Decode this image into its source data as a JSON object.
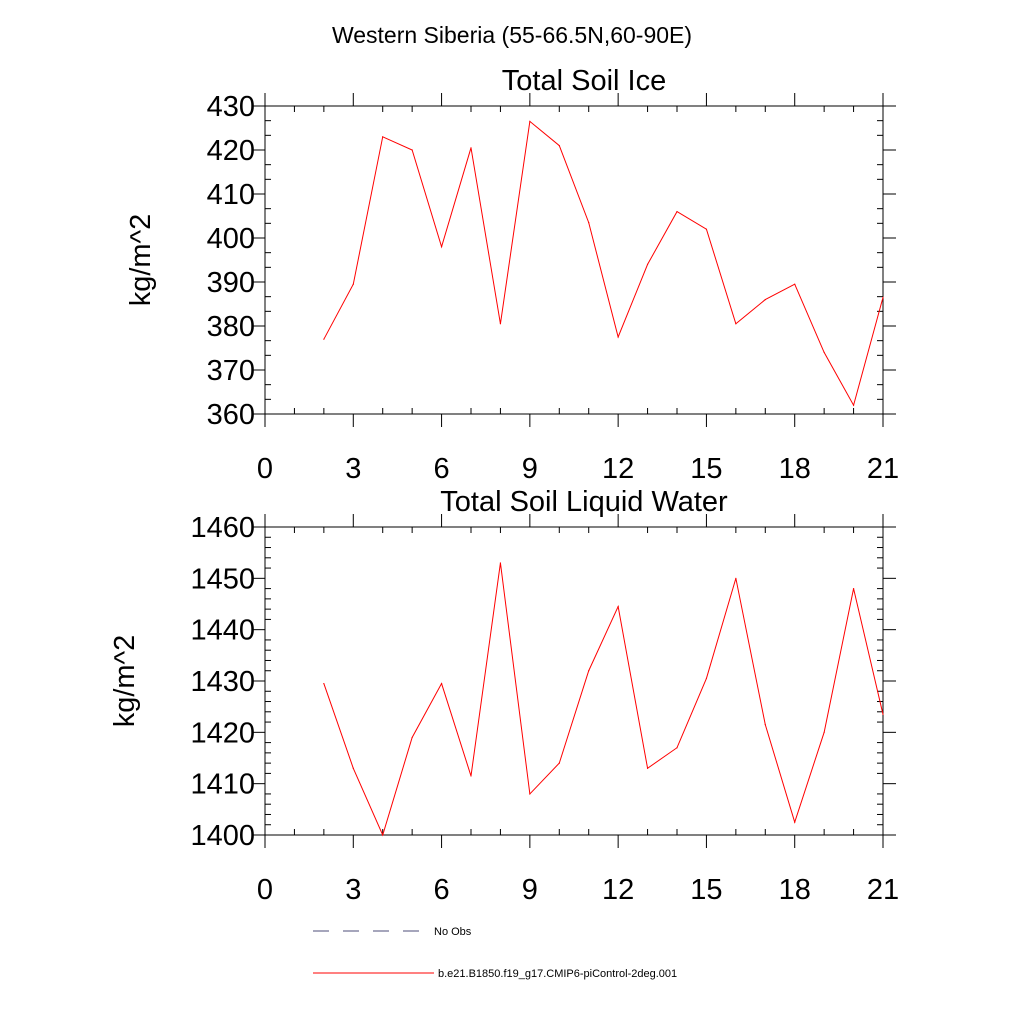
{
  "suptitle": "Western Siberia (55-66.5N,60-90E)",
  "colors": {
    "series": "#ff0000",
    "axis": "#000000",
    "noobs": "#4d4d7a"
  },
  "legend": {
    "items": [
      {
        "label": "No Obs",
        "style": "dashed"
      },
      {
        "label": "b.e21.B1850.f19_g17.CMIP6-piControl-2deg.001",
        "style": "solid"
      }
    ]
  },
  "chart_data": [
    {
      "type": "line",
      "title": "Total Soil Ice",
      "xlabel": "",
      "ylabel": "kg/m^2",
      "xlim": [
        0,
        21
      ],
      "ylim": [
        360,
        430
      ],
      "xticks": [
        0,
        3,
        6,
        9,
        12,
        15,
        18,
        21
      ],
      "yticks": [
        360,
        370,
        380,
        390,
        400,
        410,
        420,
        430
      ],
      "series": [
        {
          "name": "b.e21.B1850.f19_g17.CMIP6-piControl-2deg.001",
          "x": [
            2,
            3,
            4,
            5,
            6,
            7,
            8,
            9,
            10,
            11,
            12,
            13,
            14,
            15,
            16,
            17,
            18,
            19,
            20,
            21
          ],
          "values": [
            377,
            389.5,
            423,
            420,
            398,
            420.5,
            380.5,
            426.5,
            421,
            403.5,
            377.5,
            394,
            406,
            402,
            380.5,
            386,
            389.5,
            374,
            362,
            386.5
          ]
        }
      ]
    },
    {
      "type": "line",
      "title": "Total Soil Liquid Water",
      "xlabel": "",
      "ylabel": "kg/m^2",
      "xlim": [
        0,
        21
      ],
      "ylim": [
        1400,
        1460
      ],
      "xticks": [
        0,
        3,
        6,
        9,
        12,
        15,
        18,
        21
      ],
      "yticks": [
        1400,
        1410,
        1420,
        1430,
        1440,
        1450,
        1460
      ],
      "series": [
        {
          "name": "b.e21.B1850.f19_g17.CMIP6-piControl-2deg.001",
          "x": [
            2,
            3,
            4,
            5,
            6,
            7,
            8,
            9,
            10,
            11,
            12,
            13,
            14,
            15,
            16,
            17,
            18,
            19,
            20,
            21
          ],
          "values": [
            1429.5,
            1413,
            1400,
            1419,
            1429.5,
            1411.5,
            1453,
            1408,
            1414,
            1432,
            1444.5,
            1413,
            1417,
            1430.5,
            1450,
            1421.5,
            1402.5,
            1420,
            1448,
            1423.5
          ]
        }
      ]
    }
  ]
}
